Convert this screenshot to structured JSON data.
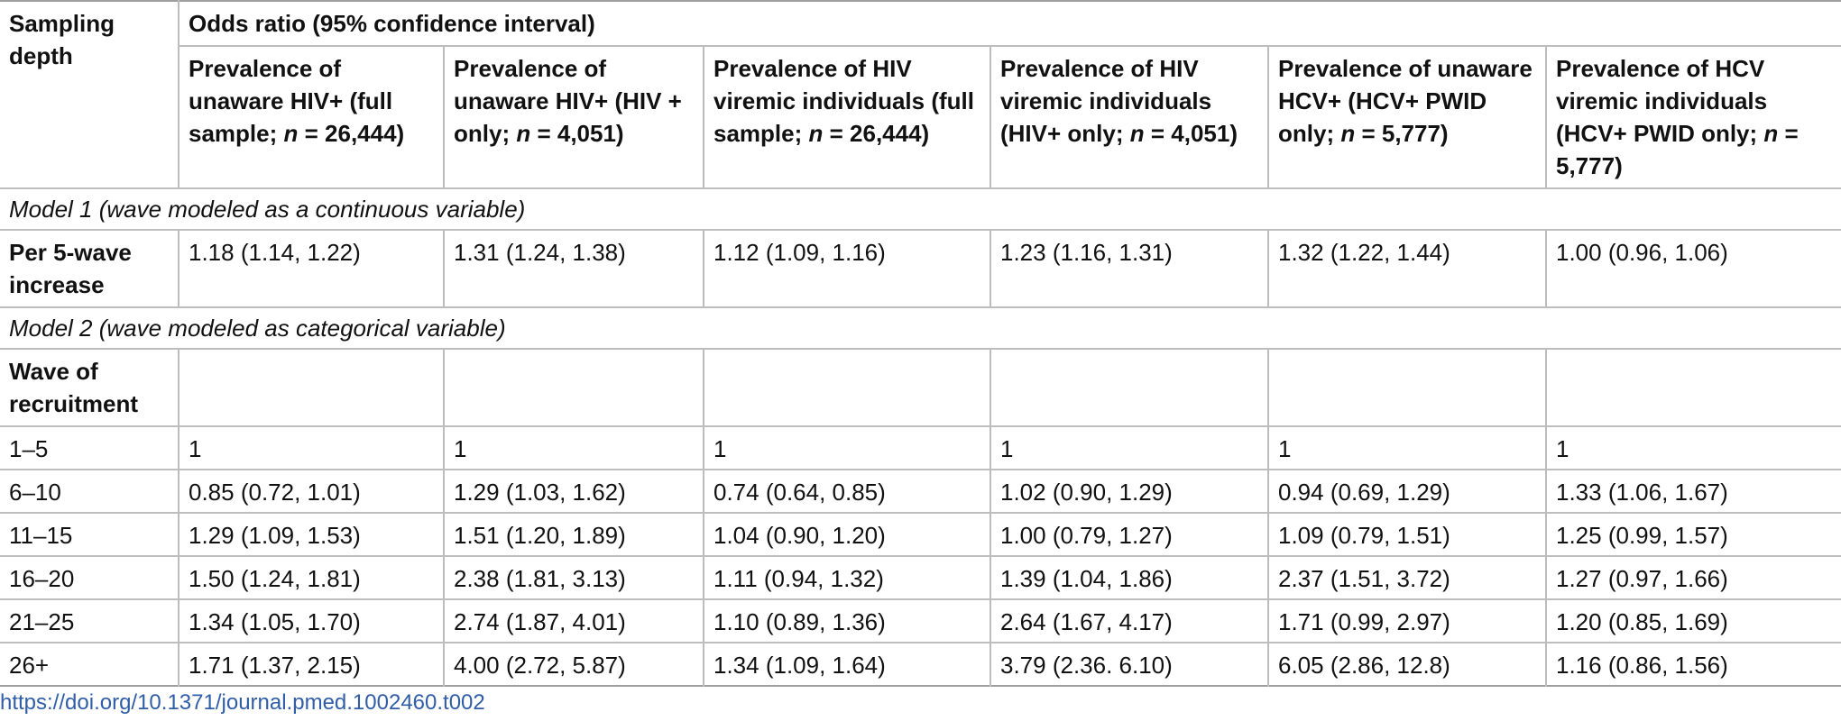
{
  "table": {
    "depth_header": "Sampling depth",
    "span_header": "Odds ratio (95% confidence interval)",
    "columns": [
      {
        "pre": "Prevalence of unaware HIV+ (full sample; ",
        "n": "n",
        "post": " = 26,444)"
      },
      {
        "pre": "Prevalence of unaware HIV+ (HIV + only; ",
        "n": "n",
        "post": " = 4,051)"
      },
      {
        "pre": "Prevalence of HIV viremic individuals (full sample; ",
        "n": "n",
        "post": " = 26,444)"
      },
      {
        "pre": "Prevalence of HIV viremic individuals (HIV+ only; ",
        "n": "n",
        "post": " = 4,051)"
      },
      {
        "pre": "Prevalence of unaware HCV+ (HCV+ PWID only; ",
        "n": "n",
        "post": " = 5,777)"
      },
      {
        "pre": "Prevalence of HCV viremic individuals (HCV+ PWID only; ",
        "n": "n",
        "post": " = 5,777)"
      }
    ],
    "model1_label": "Model 1 (wave modeled as a continuous variable)",
    "model1_row": {
      "label": "Per 5-wave increase",
      "values": [
        "1.18 (1.14, 1.22)",
        "1.31 (1.24, 1.38)",
        "1.12 (1.09, 1.16)",
        "1.23 (1.16, 1.31)",
        "1.32 (1.22, 1.44)",
        "1.00 (0.96, 1.06)"
      ]
    },
    "model2_label": "Model 2 (wave modeled as categorical variable)",
    "wave_label": "Wave of recruitment",
    "rows": [
      {
        "label": "1–5",
        "values": [
          "1",
          "1",
          "1",
          "1",
          "1",
          "1"
        ]
      },
      {
        "label": "6–10",
        "values": [
          "0.85 (0.72, 1.01)",
          "1.29 (1.03, 1.62)",
          "0.74 (0.64, 0.85)",
          "1.02 (0.90, 1.29)",
          "0.94 (0.69, 1.29)",
          "1.33 (1.06, 1.67)"
        ]
      },
      {
        "label": "11–15",
        "values": [
          "1.29 (1.09, 1.53)",
          "1.51 (1.20, 1.89)",
          "1.04 (0.90, 1.20)",
          "1.00 (0.79, 1.27)",
          "1.09 (0.79, 1.51)",
          "1.25 (0.99, 1.57)"
        ]
      },
      {
        "label": "16–20",
        "values": [
          "1.50 (1.24, 1.81)",
          "2.38 (1.81, 3.13)",
          "1.11 (0.94, 1.32)",
          "1.39 (1.04, 1.86)",
          "2.37 (1.51, 3.72)",
          "1.27 (0.97, 1.66)"
        ]
      },
      {
        "label": "21–25",
        "values": [
          "1.34 (1.05, 1.70)",
          "2.74 (1.87, 4.01)",
          "1.10 (0.89, 1.36)",
          "2.64 (1.67, 4.17)",
          "1.71 (0.99, 2.97)",
          "1.20 (0.85, 1.69)"
        ]
      },
      {
        "label": "26+",
        "values": [
          "1.71 (1.37, 2.15)",
          "4.00 (2.72, 5.87)",
          "1.34 (1.09, 1.64)",
          "3.79 (2.36. 6.10)",
          "6.05 (2.86, 12.8)",
          "1.16 (0.86, 1.56)"
        ]
      }
    ]
  },
  "doi": "https://doi.org/10.1371/journal.pmed.1002460.t002"
}
